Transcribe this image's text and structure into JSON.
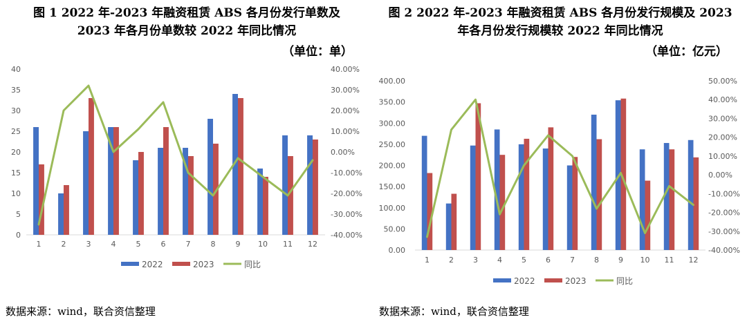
{
  "charts": [
    {
      "title_line1": "图 1   2022 年-2023 年融资租赁 ABS 各月份发行单数及",
      "title_line2": "2023 年各月份单数较 2022 年同比情况",
      "unit": "（单位：单）",
      "source": "数据来源：wind，联合资信整理"
    },
    {
      "title_line1": "图 2   2022 年-2023 年融资租赁 ABS 各月份发行规模及 2023",
      "title_line2": "年各月份发行规模较 2022 年同比情况",
      "unit": "（单位：亿元）",
      "source": "数据来源：wind，联合资信整理"
    }
  ],
  "colors": {
    "series_2022": "#4472C4",
    "series_2023": "#C0504D",
    "series_yoy": "#9BBB59",
    "grid": "#D9D9D9",
    "axis_text": "#595959"
  },
  "chart_data": [
    {
      "type": "bar",
      "categories": [
        "1",
        "2",
        "3",
        "4",
        "5",
        "6",
        "7",
        "8",
        "9",
        "10",
        "11",
        "12"
      ],
      "series": [
        {
          "name": "2022",
          "type": "bar",
          "axis": "left",
          "values": [
            26,
            10,
            25,
            26,
            18,
            21,
            21,
            28,
            34,
            16,
            24,
            24
          ]
        },
        {
          "name": "2023",
          "type": "bar",
          "axis": "left",
          "values": [
            17,
            12,
            33,
            26,
            20,
            26,
            19,
            22,
            33,
            14,
            19,
            23
          ]
        },
        {
          "name": "同比",
          "type": "line",
          "axis": "right",
          "values": [
            -35,
            20,
            32,
            0,
            11,
            24,
            -10,
            -21,
            -3,
            -12,
            -21,
            -4
          ]
        }
      ],
      "ylim_left": [
        0,
        40
      ],
      "yticks_left": [
        "0",
        "5",
        "10",
        "15",
        "20",
        "25",
        "30",
        "35",
        "40"
      ],
      "ylim_right": [
        -40,
        40
      ],
      "yticks_right": [
        "-40.00%",
        "-30.00%",
        "-20.00%",
        "-10.00%",
        "0.00%",
        "10.00%",
        "20.00%",
        "30.00%",
        "40.00%"
      ],
      "legend": [
        "2022",
        "2023",
        "同比"
      ],
      "legend_position": "bottom",
      "grid": false
    },
    {
      "type": "bar",
      "categories": [
        "1",
        "2",
        "3",
        "4",
        "5",
        "6",
        "7",
        "8",
        "9",
        "10",
        "11",
        "12"
      ],
      "series": [
        {
          "name": "2022",
          "type": "bar",
          "axis": "left",
          "values": [
            270,
            110,
            247,
            285,
            250,
            240,
            200,
            320,
            354,
            238,
            253,
            260
          ]
        },
        {
          "name": "2023",
          "type": "bar",
          "axis": "left",
          "values": [
            182,
            133,
            347,
            225,
            263,
            290,
            220,
            262,
            358,
            164,
            238,
            219
          ]
        },
        {
          "name": "同比",
          "type": "line",
          "axis": "right",
          "values": [
            -33,
            24,
            40,
            -21,
            5,
            21,
            10,
            -18,
            1,
            -31,
            -6,
            -16
          ]
        }
      ],
      "ylim_left": [
        0,
        400
      ],
      "yticks_left": [
        "0.00",
        "50.00",
        "100.00",
        "150.00",
        "200.00",
        "250.00",
        "300.00",
        "350.00",
        "400.00"
      ],
      "ylim_right": [
        -40,
        50
      ],
      "yticks_right": [
        "-40.00%",
        "-30.00%",
        "-20.00%",
        "-10.00%",
        "0.00%",
        "10.00%",
        "20.00%",
        "30.00%",
        "40.00%",
        "50.00%"
      ],
      "legend": [
        "2022",
        "2023",
        "同比"
      ],
      "legend_position": "bottom",
      "grid": false
    }
  ]
}
